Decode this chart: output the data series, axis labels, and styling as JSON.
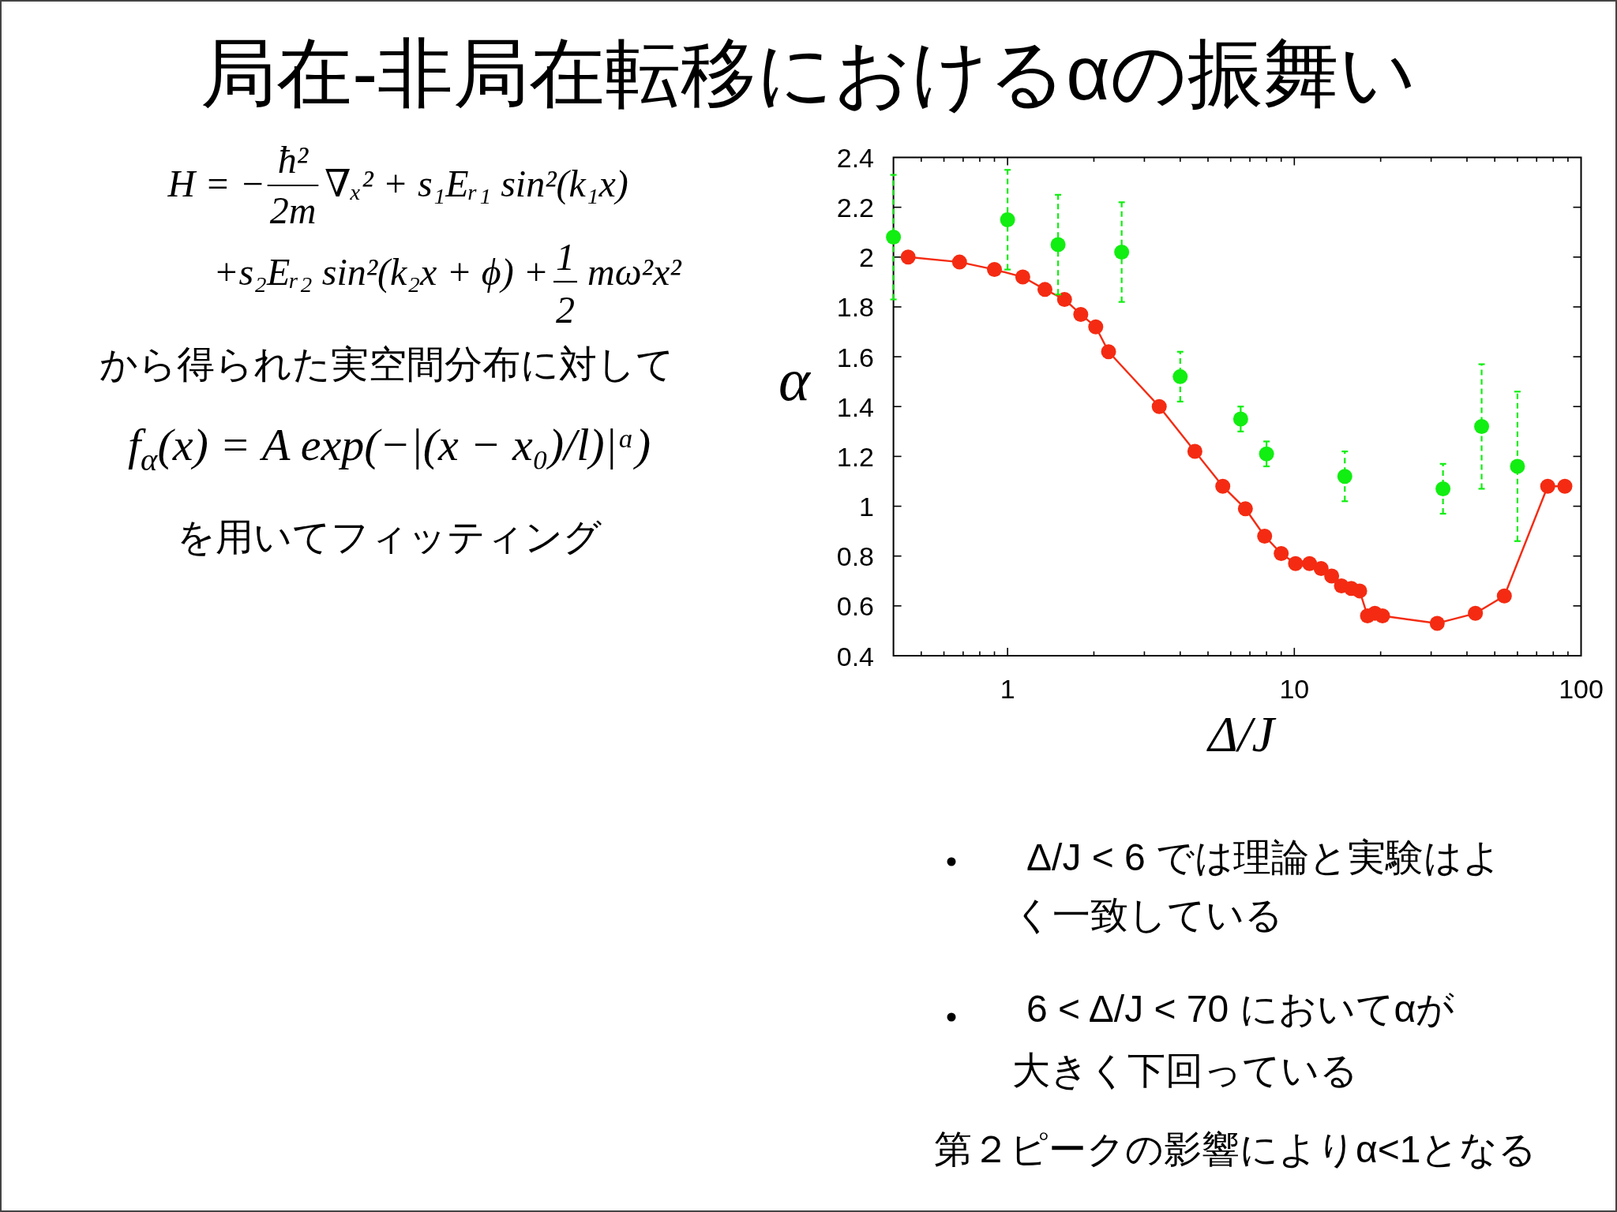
{
  "chart_data": {
    "type": "line",
    "title": "局在-非局在転移におけるαの振舞い",
    "xlabel": "Δ/J",
    "ylabel": "α",
    "log": "x",
    "marker": "circle",
    "line_style": "solid",
    "xlim": [
      0.4,
      100
    ],
    "xticks": [
      {
        "value": 0.5,
        "label": null
      },
      {
        "value": 0.6,
        "label": null
      },
      {
        "value": 0.7,
        "label": null
      },
      {
        "value": 0.8,
        "label": null
      },
      {
        "value": 0.9,
        "label": null
      },
      1,
      {
        "value": 2,
        "label": null
      },
      {
        "value": 3,
        "label": null
      },
      {
        "value": 4,
        "label": null
      },
      {
        "value": 5,
        "label": null
      },
      {
        "value": 6,
        "label": null
      },
      {
        "value": 7,
        "label": null
      },
      {
        "value": 8,
        "label": null
      },
      {
        "value": 9,
        "label": null
      },
      10,
      {
        "value": 20,
        "label": null
      },
      {
        "value": 30,
        "label": null
      },
      {
        "value": 40,
        "label": null
      },
      {
        "value": 50,
        "label": null
      },
      {
        "value": 60,
        "label": null
      },
      {
        "value": 70,
        "label": null
      },
      {
        "value": 80,
        "label": null
      },
      {
        "value": 90,
        "label": null
      },
      100
    ],
    "ylim": [
      0.4,
      2.4
    ],
    "yticks": [
      0.4,
      0.6,
      0.8,
      1,
      1.2,
      1.4,
      1.6,
      1.8,
      2,
      2.2,
      2.4
    ],
    "series": [
      {
        "type": "line",
        "color": "#f42b12",
        "x": [
          0.45,
          0.68,
          0.9,
          1.13,
          1.35,
          1.58,
          1.8,
          2.03,
          2.25,
          3.38,
          4.5,
          5.63,
          6.75,
          7.88,
          9,
          10.1,
          11.3,
          12.4,
          13.5,
          14.6,
          15.8,
          16.9,
          18,
          19.1,
          20.3,
          31.5,
          42.8,
          54,
          76.5,
          87.8
        ],
        "values": [
          2.0,
          1.98,
          1.95,
          1.92,
          1.87,
          1.83,
          1.77,
          1.72,
          1.62,
          1.4,
          1.22,
          1.08,
          0.99,
          0.88,
          0.81,
          0.77,
          0.77,
          0.75,
          0.72,
          0.68,
          0.67,
          0.66,
          0.56,
          0.57,
          0.56,
          0.53,
          0.57,
          0.64,
          1.08,
          1.08
        ]
      },
      {
        "type": "scatter",
        "color": "#11ee11",
        "x": [
          0.4,
          1,
          1.5,
          2.5,
          4,
          6.5,
          8,
          15,
          33,
          45,
          60
        ],
        "values": [
          2.08,
          2.15,
          2.05,
          2.02,
          1.52,
          1.35,
          1.21,
          1.12,
          1.07,
          1.32,
          1.16
        ],
        "errors": [
          0.25,
          0.2,
          0.2,
          0.2,
          0.1,
          0.05,
          0.05,
          0.1,
          0.1,
          0.25,
          0.3
        ]
      }
    ],
    "annotations": [
      "H = −",
      "ħ²",
      "2m",
      "∇ₓ² + s₁Eᵣ₁ sin²(k₁x)",
      "+s₂Eᵣ₂ sin²(k₂x + ϕ) +",
      "1",
      "2",
      "mω²x²",
      "から得られた実空間分布に対して",
      "f$_{α}$(x) = A exp(−|(x − x₀)/l)|ᵅ)",
      "を用いてフィッティング",
      "Δ/J < 6 では理論と実験はよく一致している",
      "6 < Δ/J < 70 においてαが大きく下回っている",
      "第２ピークの影響によりα<1となる"
    ]
  }
}
